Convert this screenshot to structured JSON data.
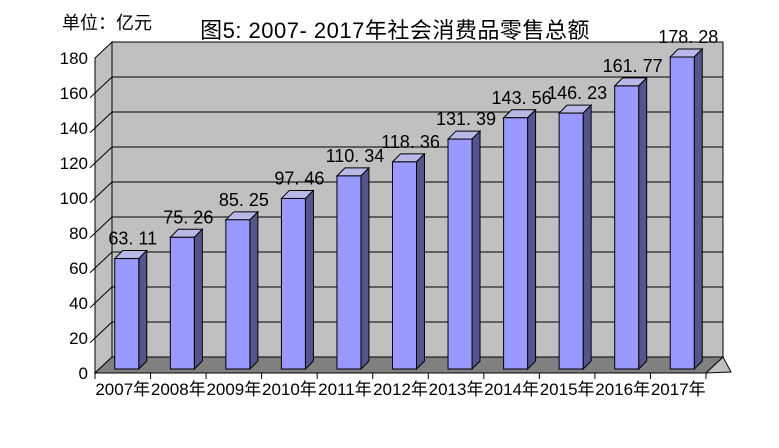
{
  "header": {
    "unit_label": "单位：亿元"
  },
  "chart_data": {
    "type": "bar",
    "title": "图5: 2007- 2017年社会消费品零售总额",
    "unit_label": "单位：亿元",
    "categories": [
      "2007年",
      "2008年",
      "2009年",
      "2010年",
      "2011年",
      "2012年",
      "2013年",
      "2014年",
      "2015年",
      "2016年",
      "2017年"
    ],
    "values": [
      63.11,
      75.26,
      85.25,
      97.46,
      110.34,
      118.36,
      131.39,
      143.56,
      146.23,
      161.77,
      178.28
    ],
    "value_labels": [
      "63. 11",
      "75. 26",
      "85. 25",
      "97. 46",
      "110. 34",
      "118. 36",
      "131. 39",
      "143. 56",
      "146. 23",
      "161. 77",
      "178. 28"
    ],
    "xlabel": "",
    "ylabel": "",
    "ylim": [
      0,
      180
    ],
    "ytick_step": 20,
    "ytick_labels": [
      "0",
      "20",
      "40",
      "60",
      "80",
      "100",
      "120",
      "140",
      "160",
      "180"
    ],
    "grid": true,
    "legend_position": "none",
    "style_3d": true,
    "colors": {
      "bar_front": "#9999FF",
      "bar_top": "#B9B9E8",
      "bar_side": "#55558E",
      "wall": "#C0C0C0",
      "floor": "#808080",
      "outline": "#000000",
      "text": "#000000",
      "background": "#FFFFFF"
    }
  }
}
